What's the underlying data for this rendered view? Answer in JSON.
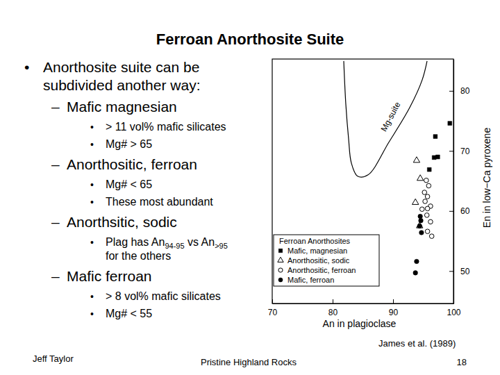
{
  "slide": {
    "title": "Ferroan Anorthosite Suite",
    "bullets": [
      {
        "bullet": "•",
        "text": [
          "Anorthosite suite can be",
          "subdivided another way:"
        ],
        "children": [
          {
            "bullet": "–",
            "text": [
              "Mafic magnesian"
            ],
            "children": [
              {
                "bullet": "•",
                "text": [
                  "> 11 vol% mafic silicates"
                ]
              },
              {
                "bullet": "•",
                "text": [
                  "Mg# > 65"
                ]
              }
            ]
          },
          {
            "bullet": "–",
            "text": [
              "Anorthositic, ferroan"
            ],
            "children": [
              {
                "bullet": "•",
                "text": [
                  "Mg# < 65"
                ]
              },
              {
                "bullet": "•",
                "text": [
                  "These most abundant"
                ]
              }
            ]
          },
          {
            "bullet": "–",
            "text": [
              "Anorthsitic, sodic"
            ],
            "children": [
              {
                "bullet": "•",
                "text": [
                  [
                    {
                      "text": "Plag has An"
                    },
                    {
                      "text": "94-95",
                      "sub": true
                    },
                    {
                      "text": " vs An"
                    },
                    {
                      "text": ">95",
                      "sub": true
                    }
                  ],
                  "for the others"
                ]
              }
            ]
          },
          {
            "bullet": "–",
            "text": [
              "Mafic ferroan"
            ],
            "children": [
              {
                "bullet": "•",
                "text": [
                  "> 8 vol% mafic silicates"
                ]
              },
              {
                "bullet": "•",
                "text": [
                  "Mg# < 55"
                ]
              }
            ]
          }
        ]
      }
    ],
    "source": "James et al. (1989)",
    "footer_left": "Jeff Taylor",
    "footer_center": "Pristine Highland Rocks",
    "footer_right": "18"
  },
  "chart_data": {
    "type": "scatter",
    "x_label": "An in plagioclase",
    "y_label": "En in low−Ca pyroxene",
    "xlim": [
      70,
      100
    ],
    "xticks": [
      70,
      80,
      90,
      100
    ],
    "ylim": [
      44.6,
      85.3
    ],
    "yticks": [
      50,
      60,
      70,
      80
    ],
    "legend": "lower left",
    "legend_title": "Ferroan Anorthosites",
    "series": [
      {
        "name": "Mafic, magnesian",
        "color": "#000000",
        "marker": "square",
        "x": [
          99.4,
          97.0,
          96.8,
          97.4,
          96.0
        ],
        "values": [
          74.6,
          72.4,
          68.9,
          69.0,
          66.9
        ]
      },
      {
        "name": "Anorthositic, sodic",
        "color": "#000000",
        "marker": "triangle-open",
        "x": [
          93.9,
          94.5,
          93.7,
          94.4
        ],
        "values": [
          68.4,
          65.4,
          61.4,
          57.5
        ]
      },
      {
        "name": "Anorthositic, ferroan",
        "color": "#000000",
        "marker": "circle-open",
        "x": [
          95.5,
          95.9,
          95.2,
          95.7,
          95.3,
          96.2,
          94.8,
          95.6,
          96.2,
          95.7,
          96.4,
          95.7
        ],
        "values": [
          65.1,
          64.2,
          63.1,
          62.4,
          61.6,
          60.8,
          60.3,
          59.3,
          58.2,
          56.6,
          55.8,
          60.4
        ]
      },
      {
        "name": "Mafic, ferroan",
        "color": "#000000",
        "marker": "circle",
        "x": [
          94.5,
          94.6,
          94.4,
          94.7,
          93.9,
          93.7
        ],
        "values": [
          59.1,
          58.4,
          57.5,
          56.4,
          51.6,
          49.7
        ]
      }
    ],
    "regions": [
      {
        "name": "Mg-suite",
        "color": "#000000",
        "x": [
          81.84,
          82.18,
          82.64,
          83.1,
          84.14,
          85.86,
          89.31,
          92.76,
          94.83,
          95.63
        ],
        "values": [
          84.97,
          77.8,
          72.02,
          67.98,
          65.78,
          66.01,
          71.45,
          77.23,
          81.85,
          84.97
        ]
      }
    ]
  }
}
